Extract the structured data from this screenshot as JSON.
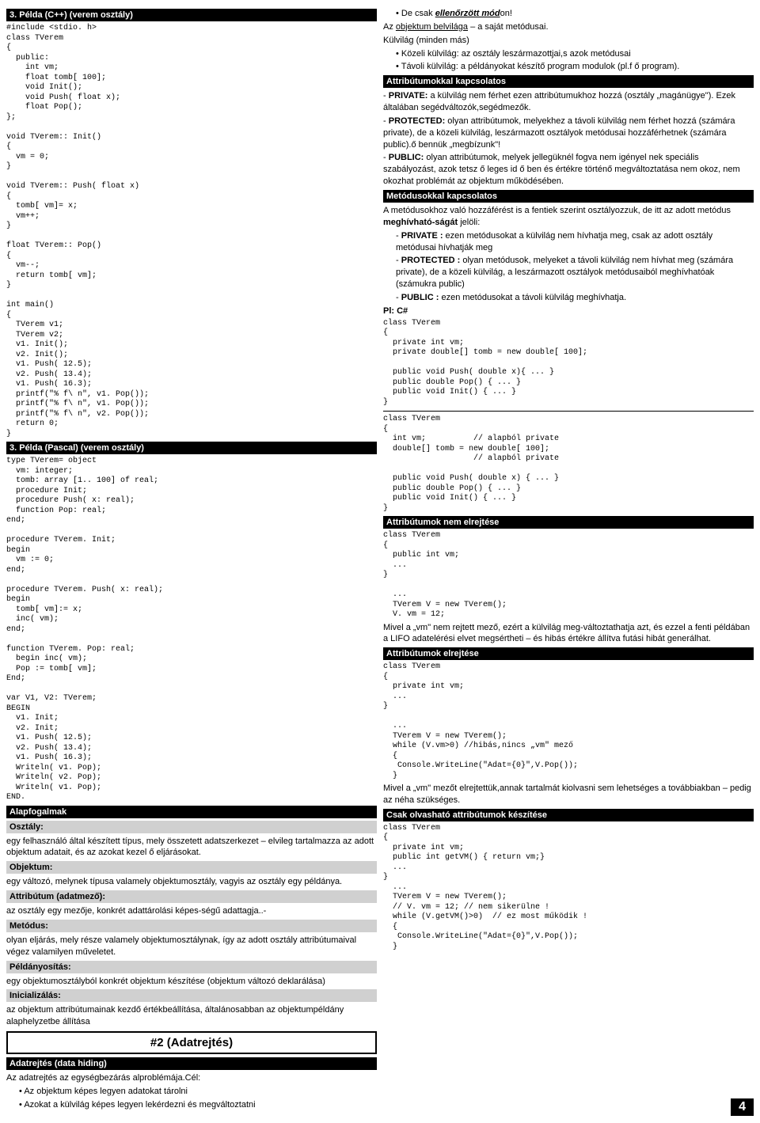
{
  "left": {
    "h1": "3. Példa (C++) (verem osztály)",
    "code1": "#include <stdio. h>\nclass TVerem\n{\n  public:\n    int vm;\n    float tomb[ 100];\n    void Init();\n    void Push( float x);\n    float Pop();\n};\n\nvoid TVerem:: Init()\n{\n  vm = 0;\n}\n\nvoid TVerem:: Push( float x)\n{\n  tomb[ vm]= x;\n  vm++;\n}\n\nfloat TVerem:: Pop()\n{\n  vm--;\n  return tomb[ vm];\n}\n\nint main()\n{\n  TVerem v1;\n  TVerem v2;\n  v1. Init();\n  v2. Init();\n  v1. Push( 12.5);\n  v2. Push( 13.4);\n  v1. Push( 16.3);\n  printf(\"% f\\ n\", v1. Pop());\n  printf(\"% f\\ n\", v1. Pop());\n  printf(\"% f\\ n\", v2. Pop());\n  return 0;\n}",
    "h2": "3. Példa (Pascal) (verem osztály)",
    "code2": "type TVerem= object\n  vm: integer;\n  tomb: array [1.. 100] of real;\n  procedure Init;\n  procedure Push( x: real);\n  function Pop: real;\nend;\n\nprocedure TVerem. Init;\nbegin\n  vm := 0;\nend;\n\nprocedure TVerem. Push( x: real);\nbegin\n  tomb[ vm]:= x;\n  inc( vm);\nend;\n\nfunction TVerem. Pop: real;\n  begin inc( vm);\n  Pop := tomb[ vm];\nEnd;\n\nvar V1, V2: TVerem;\nBEGIN\n  v1. Init;\n  v2. Init;\n  v1. Push( 12.5);\n  v2. Push( 13.4);\n  v1. Push( 16.3);\n  Writeln( v1. Pop);\n  Writeln( v2. Pop);\n  Writeln( v1. Pop);\nEND.",
    "h3": "Alapfogalmak",
    "t_osztaly": "Osztály:",
    "p_osztaly": "egy felhasználó által készített típus, mely összetett adatszerkezet – elvileg tartalmazza az adott objektum adatait, és az azokat kezel ő eljárásokat.",
    "t_obj": "Objektum:",
    "p_obj": "egy változó, melynek típusa valamely objektumosztály, vagyis az osztály egy példánya.",
    "t_attr": "Attribútum (adatmező):",
    "p_attr": "az osztály egy mezője, konkrét adattárolási képes-ségű adattagja..-",
    "t_met": "Metódus:",
    "p_met": "olyan eljárás, mely része valamely objektumosztálynak, így az adott osztály attribútumaival végez valamilyen műveletet.",
    "t_peld": "Példányosítás:",
    "p_peld": "egy objektumosztályból konkrét objektum készítése (objektum változó deklarálása)",
    "t_init": "Inicializálás:",
    "p_init": "az objektum attribútumainak kezdő értékbeállítása, általánosabban az objektumpéldány alaphelyzetbe állítása",
    "bigbtn": "#2 (Adatrejtés)",
    "h4": "Adatrejtés (data hiding)",
    "p_adat": "Az adatrejtés az egységbezárás alproblémája.Cél:",
    "b1": "Az objektum képes legyen adatokat tárolni",
    "b2": "Azokat a külvilág képes legyen lekérdezni és megváltoztatni"
  },
  "right": {
    "b0a": "De csak ",
    "b0b": "ellenőrzött mód",
    "b0c": "on!",
    "p1a": "Az ",
    "p1b": "objektum belvilága",
    "p1c": " – a saját metódusai.",
    "p2": "Külvilág (minden más)",
    "b1": "Közeli külvilág: az osztály leszármazottjai,s azok metódusai",
    "b2": "Távoli külvilág: a példányokat készítő program modulok (pl.f ő program).",
    "h1": "Attribútumokkal kapcsolatos",
    "priv_t": "PRIVATE:",
    "priv_p": " a külvilág nem férhet ezen attribútumukhoz hozzá (osztály „magánügye\"). Ezek általában segédváltozók,segédmezők.",
    "prot_t": "PROTECTED:",
    "prot_p": " olyan attribútumok, melyekhez a távoli külvilág nem férhet hozzá (számára private), de a közeli külvilág, leszármazott osztályok metódusai hozzáférhetnek (számára public).ő bennük „megbízunk\"!",
    "pub_t": "PUBLIC:",
    "pub_p": " olyan attribútumok, melyek jellegüknél fogva nem igényel nek speciális szabályozást, azok tetsz ő leges id ő ben és értékre történő megváltoztatása nem okoz, nem okozhat problémát az objektum működésében.",
    "h2": "Metódusokkal kapcsolatos",
    "p3a": "A metódusokhoz való hozzáférést is a fentiek szerint osztályozzuk, de itt az adott metódus ",
    "p3b": "meghívható-ságát",
    "p3c": " jelöli:",
    "m_priv_t": "PRIVATE :",
    "m_priv_p": " ezen metódusokat a külvilág nem hívhatja meg, csak az adott osztály metódusai hívhatják meg",
    "m_prot_t": "PROTECTED :",
    "m_prot_p": " olyan metódusok, melyeket a távoli külvilág nem hívhat meg (számára private), de a közeli külvilág, a leszármazott osztályok metódusaiból meghívhatóak (számukra public)",
    "m_pub_t": "PUBLIC :",
    "m_pub_p": "  ezen metódusokat a távoli külvilág meghívhatja.",
    "h3": "Pl: C#",
    "code1": "class TVerem\n{\n  private int vm;\n  private double[] tomb = new double[ 100];\n\n  public void Push( double x){ ... }\n  public double Pop() { ... }\n  public void Init() { ... }\n}",
    "code2": "class TVerem\n{\n  int vm;          // alapból private\n  double[] tomb = new double[ 100];\n                   // alapból private\n\n  public void Push( double x) { ... }\n  public double Pop() { ... }\n  public void Init() { ... }\n}",
    "h4": "Attribútumok nem elrejtése",
    "code3": "class TVerem\n{\n  public int vm;\n  ...\n}\n\n  ...\n  TVerem V = new TVerem();\n  V. vm = 12;",
    "p4": "Mivel a „vm\" nem rejtett mező, ezért a külvilág meg-változtathatja azt, és ezzel a fenti példában a LIFO adatelérési elvet megsértheti – és hibás értékre állítva futási hibát generálhat.",
    "h5": "Attribútumok elrejtése",
    "code4": "class TVerem\n{\n  private int vm;\n  ...\n}\n\n  ...\n  TVerem V = new TVerem();\n  while (V.vm>0) //hibás,nincs „vm\" mező\n  {\n   Console.WriteLine(\"Adat={0}\",V.Pop());\n  }",
    "p5": "Mivel a „vm\" mezőt elrejtettük,annak tartalmát kiolvasni sem lehetséges a továbbiakban – pedig az néha szükséges.",
    "h6": "Csak olvasható attribútumok készítése",
    "code5": "class TVerem\n{\n  private int vm;\n  public int getVM() { return vm;}\n  ...\n}\n  ...\n  TVerem V = new TVerem();\n  // V. vm = 12; // nem sikerülne !\n  while (V.getVM()>0)  // ez most működik !\n  {\n   Console.WriteLine(\"Adat={0}\",V.Pop());\n  }"
  },
  "pagenum": "4"
}
